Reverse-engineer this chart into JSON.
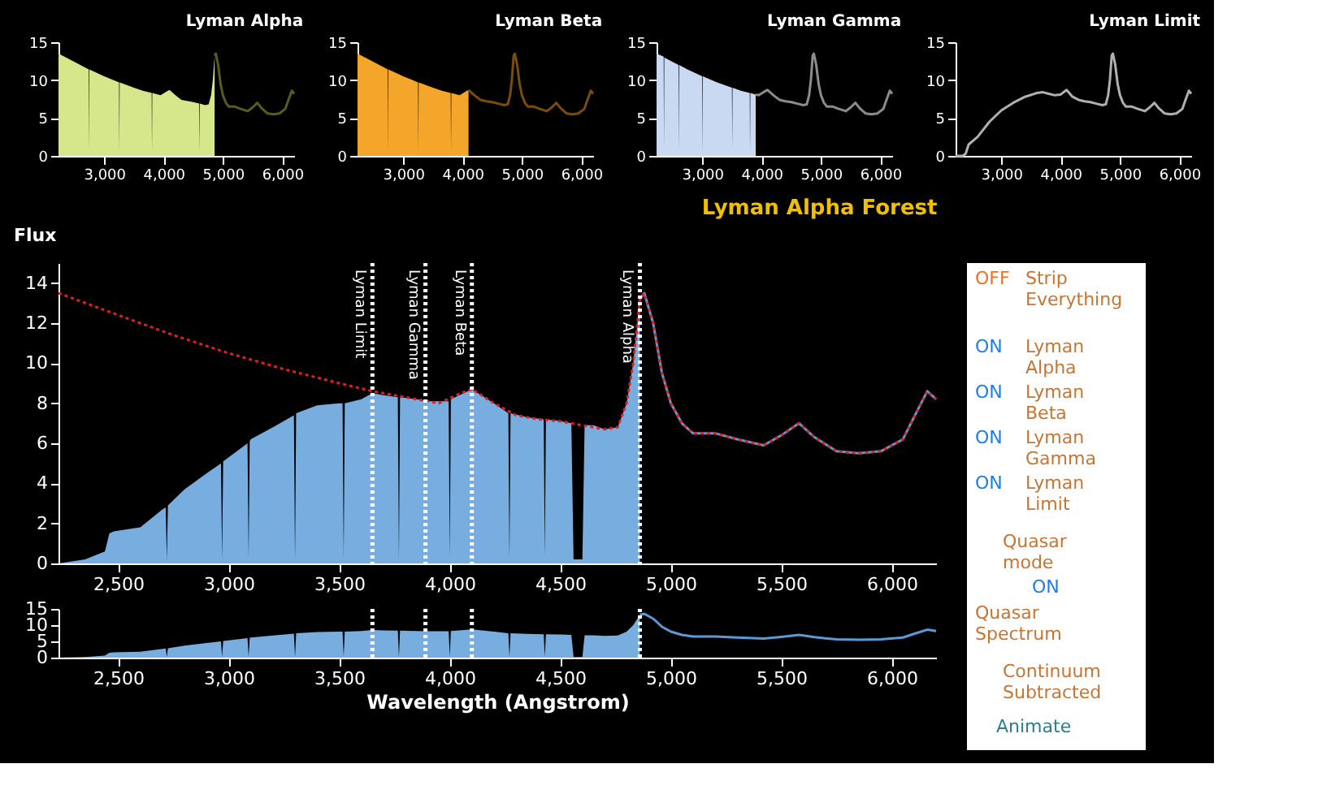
{
  "chart_data": [
    {
      "type": "area",
      "title": "Lyman Alpha",
      "xlim": [
        2230,
        6200
      ],
      "xticks": [
        {
          "value": 3000,
          "label": "3,000"
        },
        {
          "value": 4000,
          "label": "4,000"
        },
        {
          "value": 5000,
          "label": "5,000"
        },
        {
          "value": 6000,
          "label": "6,000"
        }
      ],
      "ylim": [
        0,
        15
      ],
      "yticks": [
        0,
        5,
        10,
        15
      ],
      "series": [
        {
          "type": "area",
          "color": "#d6e68a",
          "x": [
            2230,
            2500,
            2740,
            2745,
            2750,
            3000,
            3250,
            3255,
            3260,
            3500,
            3650,
            3800,
            3805,
            3810,
            3950,
            4050,
            4100,
            4200,
            4300,
            4500,
            4600,
            4605,
            4610,
            4700,
            4760,
            4800,
            4830,
            4860
          ],
          "values": [
            13.5,
            12.4,
            11.4,
            0.5,
            11.4,
            10.5,
            9.7,
            0.5,
            9.7,
            9.0,
            8.6,
            8.3,
            0.5,
            8.3,
            8.0,
            8.5,
            8.7,
            8.0,
            7.4,
            7.1,
            6.9,
            0.5,
            6.9,
            6.7,
            6.8,
            8.0,
            10.0,
            13.2
          ]
        },
        {
          "type": "line",
          "color": "#5b5b1e",
          "x": [
            4860,
            4880,
            4920,
            4960,
            5000,
            5050,
            5100,
            5200,
            5300,
            5420,
            5500,
            5580,
            5650,
            5750,
            5850,
            5950,
            6050,
            6100,
            6160,
            6200
          ],
          "values": [
            13.2,
            13.5,
            12.0,
            9.5,
            8.0,
            7.0,
            6.5,
            6.5,
            6.2,
            5.9,
            6.4,
            7.0,
            6.3,
            5.6,
            5.5,
            5.6,
            6.2,
            7.3,
            8.6,
            8.2
          ]
        }
      ]
    },
    {
      "type": "area",
      "title": "Lyman Beta",
      "xlim": [
        2230,
        6200
      ],
      "xticks": [
        {
          "value": 3000,
          "label": "3,000"
        },
        {
          "value": 4000,
          "label": "4,000"
        },
        {
          "value": 5000,
          "label": "5,000"
        },
        {
          "value": 6000,
          "label": "6,000"
        }
      ],
      "ylim": [
        0,
        15
      ],
      "yticks": [
        0,
        5,
        10,
        15
      ],
      "series": [
        {
          "type": "area",
          "color": "#f4a62a",
          "x": [
            2230,
            2500,
            2740,
            2745,
            2750,
            3000,
            3250,
            3255,
            3260,
            3500,
            3650,
            3800,
            3805,
            3810,
            3950,
            4050,
            4100
          ],
          "values": [
            13.5,
            12.4,
            11.4,
            0.5,
            11.4,
            10.5,
            9.7,
            0.5,
            9.7,
            9.0,
            8.6,
            8.3,
            0.5,
            8.3,
            8.0,
            8.5,
            8.7
          ]
        },
        {
          "type": "line",
          "color": "#7a4d0a",
          "x": [
            4100,
            4200,
            4300,
            4400,
            4500,
            4600,
            4700,
            4760,
            4800,
            4830,
            4860,
            4880,
            4920,
            4960,
            5000,
            5050,
            5100,
            5200,
            5300,
            5420,
            5500,
            5580,
            5650,
            5750,
            5850,
            5950,
            6050,
            6100,
            6160,
            6200
          ],
          "values": [
            8.7,
            8.0,
            7.4,
            7.2,
            7.1,
            6.9,
            6.7,
            6.8,
            8.0,
            10.0,
            13.2,
            13.5,
            12.0,
            9.5,
            8.0,
            7.0,
            6.5,
            6.5,
            6.2,
            5.9,
            6.4,
            7.0,
            6.3,
            5.6,
            5.5,
            5.6,
            6.2,
            7.3,
            8.6,
            8.2
          ]
        }
      ]
    },
    {
      "type": "area",
      "title": "Lyman Gamma",
      "xlim": [
        2230,
        6200
      ],
      "xticks": [
        {
          "value": 3000,
          "label": "3,000"
        },
        {
          "value": 4000,
          "label": "4,000"
        },
        {
          "value": 5000,
          "label": "5,000"
        },
        {
          "value": 6000,
          "label": "6,000"
        }
      ],
      "ylim": [
        0,
        15
      ],
      "yticks": [
        0,
        5,
        10,
        15
      ],
      "series": [
        {
          "type": "area",
          "color": "#c9d9f2",
          "x": [
            2230,
            2350,
            2355,
            2360,
            2500,
            2600,
            2605,
            2610,
            2750,
            3000,
            3005,
            3010,
            3250,
            3500,
            3505,
            3510,
            3650,
            3800,
            3805,
            3810,
            3900
          ],
          "values": [
            13.5,
            13.1,
            1.0,
            13.0,
            12.4,
            12.0,
            0.5,
            12.0,
            11.4,
            10.5,
            0.3,
            10.5,
            9.7,
            9.0,
            1.0,
            9.0,
            8.6,
            8.3,
            0.5,
            8.3,
            8.1
          ]
        },
        {
          "type": "line",
          "color": "#8c8c8c",
          "x": [
            3900,
            3950,
            4050,
            4100,
            4200,
            4300,
            4400,
            4500,
            4600,
            4700,
            4760,
            4800,
            4830,
            4860,
            4880,
            4920,
            4960,
            5000,
            5050,
            5100,
            5200,
            5300,
            5420,
            5500,
            5580,
            5650,
            5750,
            5850,
            5950,
            6050,
            6100,
            6160,
            6200
          ],
          "values": [
            8.1,
            8.0,
            8.5,
            8.7,
            8.0,
            7.4,
            7.2,
            7.1,
            6.9,
            6.7,
            6.8,
            8.0,
            10.0,
            13.2,
            13.5,
            12.0,
            9.5,
            8.0,
            7.0,
            6.5,
            6.5,
            6.2,
            5.9,
            6.4,
            7.0,
            6.3,
            5.6,
            5.5,
            5.6,
            6.2,
            7.3,
            8.6,
            8.2
          ]
        }
      ]
    },
    {
      "type": "line",
      "title": "Lyman Limit",
      "xlim": [
        2230,
        6200
      ],
      "xticks": [
        {
          "value": 3000,
          "label": "3,000"
        },
        {
          "value": 4000,
          "label": "4,000"
        },
        {
          "value": 5000,
          "label": "5,000"
        },
        {
          "value": 6000,
          "label": "6,000"
        }
      ],
      "ylim": [
        0,
        15
      ],
      "yticks": [
        0,
        5,
        10,
        15
      ],
      "series": [
        {
          "type": "line",
          "color": "#b0b0b0",
          "x": [
            2230,
            2350,
            2400,
            2450,
            2600,
            2800,
            3000,
            3200,
            3400,
            3600,
            3700,
            3800,
            3900,
            4000,
            4100,
            4200,
            4300,
            4400,
            4500,
            4600,
            4700,
            4760,
            4800,
            4830,
            4860,
            4880,
            4920,
            4960,
            5000,
            5050,
            5100,
            5200,
            5300,
            5420,
            5500,
            5580,
            5650,
            5750,
            5850,
            5950,
            6050,
            6100,
            6160,
            6200
          ],
          "values": [
            0,
            0,
            0.3,
            1.5,
            2.5,
            4.5,
            6.0,
            7.0,
            7.8,
            8.3,
            8.4,
            8.2,
            8.0,
            8.1,
            8.7,
            7.8,
            7.4,
            7.2,
            7.1,
            6.9,
            6.7,
            6.8,
            8.0,
            10.0,
            13.2,
            13.5,
            12.0,
            9.5,
            8.0,
            7.0,
            6.5,
            6.5,
            6.2,
            5.9,
            6.4,
            7.0,
            6.3,
            5.6,
            5.5,
            5.6,
            6.2,
            7.3,
            8.6,
            8.2
          ]
        }
      ]
    },
    {
      "type": "area",
      "title": "Lyman Alpha Forest",
      "ylabel": "Flux",
      "xlim": [
        2230,
        6200
      ],
      "xticks": [
        {
          "value": 2500,
          "label": "2,500"
        },
        {
          "value": 3000,
          "label": "3,000"
        },
        {
          "value": 3500,
          "label": "3,500"
        },
        {
          "value": 4000,
          "label": "4,000"
        },
        {
          "value": 4500,
          "label": "4,500"
        },
        {
          "value": 5000,
          "label": "5,000"
        },
        {
          "value": 5500,
          "label": "5,500"
        },
        {
          "value": 6000,
          "label": "6,000"
        }
      ],
      "ylim": [
        0,
        15
      ],
      "yticks": [
        0,
        2,
        4,
        6,
        8,
        10,
        12,
        14
      ],
      "series": [
        {
          "type": "area",
          "color": "#78ade0",
          "x": [
            2230,
            2350,
            2440,
            2460,
            2480,
            2600,
            2700,
            2715,
            2720,
            2725,
            2800,
            2900,
            2965,
            2970,
            2975,
            3000,
            3085,
            3090,
            3095,
            3100,
            3200,
            3295,
            3300,
            3305,
            3400,
            3500,
            3515,
            3520,
            3525,
            3600,
            3650,
            3700,
            3765,
            3770,
            3775,
            3850,
            3900,
            3995,
            4000,
            4005,
            4100,
            4200,
            4265,
            4270,
            4275,
            4350,
            4425,
            4430,
            4435,
            4500,
            4550,
            4560,
            4600,
            4610,
            4650,
            4700,
            4760,
            4800,
            4830,
            4860
          ],
          "values": [
            0,
            0.2,
            0.6,
            1.5,
            1.6,
            1.8,
            2.7,
            2.8,
            0.2,
            2.9,
            3.7,
            4.5,
            5.0,
            0.2,
            5.1,
            5.3,
            6.0,
            0.3,
            6.1,
            6.2,
            6.8,
            7.4,
            0.2,
            7.5,
            7.9,
            8.0,
            8.0,
            0.3,
            8.0,
            8.2,
            8.5,
            8.4,
            8.3,
            0.2,
            8.3,
            8.2,
            8.1,
            8.1,
            0.3,
            8.2,
            8.7,
            8.0,
            7.5,
            0.2,
            7.5,
            7.3,
            7.2,
            0.3,
            7.2,
            7.1,
            7.0,
            0.2,
            0.2,
            6.9,
            6.9,
            6.7,
            6.8,
            8.0,
            10.0,
            13.2
          ]
        },
        {
          "type": "line",
          "color": "#5b9bd5",
          "x": [
            4860,
            4880,
            4920,
            4960,
            5000,
            5050,
            5100,
            5200,
            5300,
            5420,
            5500,
            5580,
            5650,
            5750,
            5850,
            5950,
            6050,
            6100,
            6160,
            6200
          ],
          "values": [
            13.2,
            13.5,
            12.0,
            9.5,
            8.0,
            7.0,
            6.5,
            6.5,
            6.2,
            5.9,
            6.4,
            7.0,
            6.3,
            5.6,
            5.5,
            5.6,
            6.2,
            7.3,
            8.6,
            8.2
          ]
        },
        {
          "type": "line",
          "color": "#e02020",
          "line_style": "dotted",
          "x": [
            2230,
            2500,
            2750,
            3000,
            3250,
            3500,
            3650,
            3800,
            3900,
            3950,
            4050,
            4100,
            4200,
            4300,
            4400,
            4500,
            4600,
            4700,
            4760,
            4800,
            4830,
            4860,
            4880,
            4920,
            4960,
            5000,
            5050,
            5100,
            5200,
            5300,
            5420,
            5500,
            5580,
            5650,
            5750,
            5850,
            5950,
            6050,
            6100,
            6160,
            6200
          ],
          "values": [
            13.5,
            12.4,
            11.4,
            10.5,
            9.7,
            9.0,
            8.6,
            8.3,
            8.1,
            8.0,
            8.5,
            8.7,
            8.0,
            7.4,
            7.2,
            7.1,
            6.9,
            6.7,
            6.8,
            8.0,
            10.0,
            13.2,
            13.5,
            12.0,
            9.5,
            8.0,
            7.0,
            6.5,
            6.5,
            6.2,
            5.9,
            6.4,
            7.0,
            6.3,
            5.6,
            5.5,
            5.6,
            6.2,
            7.3,
            8.6,
            8.2
          ]
        }
      ],
      "ref_lines": [
        {
          "axis": "x",
          "value": 3650,
          "label": "Lyman Limit",
          "color": "#ffffff",
          "line_style": "dotted"
        },
        {
          "axis": "x",
          "value": 3890,
          "label": "Lyman Gamma",
          "color": "#ffffff",
          "line_style": "dotted"
        },
        {
          "axis": "x",
          "value": 4100,
          "label": "Lyman Beta",
          "color": "#ffffff",
          "line_style": "dotted"
        },
        {
          "axis": "x",
          "value": 4860,
          "label": "Lyman Alpha",
          "color": "#ffffff",
          "line_style": "dotted"
        }
      ]
    },
    {
      "type": "area",
      "xlabel": "Wavelength (Angstrom)",
      "xlim": [
        2230,
        6200
      ],
      "xticks": [
        {
          "value": 2500,
          "label": "2,500"
        },
        {
          "value": 3000,
          "label": "3,000"
        },
        {
          "value": 3500,
          "label": "3,500"
        },
        {
          "value": 4000,
          "label": "4,000"
        },
        {
          "value": 4500,
          "label": "4,500"
        },
        {
          "value": 5000,
          "label": "5,000"
        },
        {
          "value": 5500,
          "label": "5,500"
        },
        {
          "value": 6000,
          "label": "6,000"
        }
      ],
      "ylim": [
        0,
        15
      ],
      "yticks": [
        0,
        5,
        10,
        15
      ],
      "series": [
        {
          "type": "area",
          "color": "#78ade0",
          "x": [
            2230,
            2350,
            2440,
            2460,
            2480,
            2600,
            2700,
            2715,
            2720,
            2725,
            2800,
            2900,
            2965,
            2970,
            2975,
            3000,
            3085,
            3090,
            3095,
            3100,
            3200,
            3295,
            3300,
            3305,
            3400,
            3500,
            3515,
            3520,
            3525,
            3600,
            3650,
            3700,
            3765,
            3770,
            3775,
            3850,
            3900,
            3995,
            4000,
            4005,
            4100,
            4200,
            4265,
            4270,
            4275,
            4350,
            4425,
            4430,
            4435,
            4500,
            4550,
            4560,
            4600,
            4610,
            4650,
            4700,
            4760,
            4800,
            4830,
            4860
          ],
          "values": [
            0,
            0.2,
            0.6,
            1.5,
            1.6,
            1.8,
            2.7,
            2.8,
            0.2,
            2.9,
            3.7,
            4.5,
            5.0,
            0.2,
            5.1,
            5.3,
            6.0,
            0.3,
            6.1,
            6.2,
            6.8,
            7.4,
            0.2,
            7.5,
            7.9,
            8.0,
            8.0,
            0.3,
            8.0,
            8.2,
            8.5,
            8.4,
            8.3,
            0.2,
            8.3,
            8.2,
            8.1,
            8.1,
            0.3,
            8.2,
            8.7,
            8.0,
            7.5,
            0.2,
            7.5,
            7.3,
            7.2,
            0.3,
            7.2,
            7.1,
            7.0,
            0.2,
            0.2,
            6.9,
            6.9,
            6.7,
            6.8,
            8.0,
            10.0,
            13.2
          ]
        },
        {
          "type": "line",
          "color": "#5b9bd5",
          "x": [
            4860,
            4880,
            4920,
            4960,
            5000,
            5050,
            5100,
            5200,
            5300,
            5420,
            5500,
            5580,
            5650,
            5750,
            5850,
            5950,
            6050,
            6100,
            6160,
            6200
          ],
          "values": [
            13.2,
            13.5,
            12.0,
            9.5,
            8.0,
            7.0,
            6.5,
            6.5,
            6.2,
            5.9,
            6.4,
            7.0,
            6.3,
            5.6,
            5.5,
            5.6,
            6.2,
            7.3,
            8.6,
            8.2
          ]
        }
      ],
      "ref_lines": [
        {
          "axis": "x",
          "value": 3650,
          "color": "#ffffff",
          "line_style": "dotted"
        },
        {
          "axis": "x",
          "value": 3890,
          "color": "#ffffff",
          "line_style": "dotted"
        },
        {
          "axis": "x",
          "value": 4100,
          "color": "#ffffff",
          "line_style": "dotted"
        },
        {
          "axis": "x",
          "value": 4860,
          "color": "#ffffff",
          "line_style": "dotted"
        }
      ]
    },
    {
      "type": "other",
      "annotations": [
        "OFF",
        "Strip Everything",
        "ON",
        "Lyman Alpha",
        "ON",
        "Lyman Beta",
        "ON",
        "Lyman Gamma",
        "ON",
        "Lyman Limit",
        "Quasar mode",
        "ON",
        "Quasar Spectrum",
        "Continuum Subtracted",
        "Animate"
      ]
    }
  ]
}
